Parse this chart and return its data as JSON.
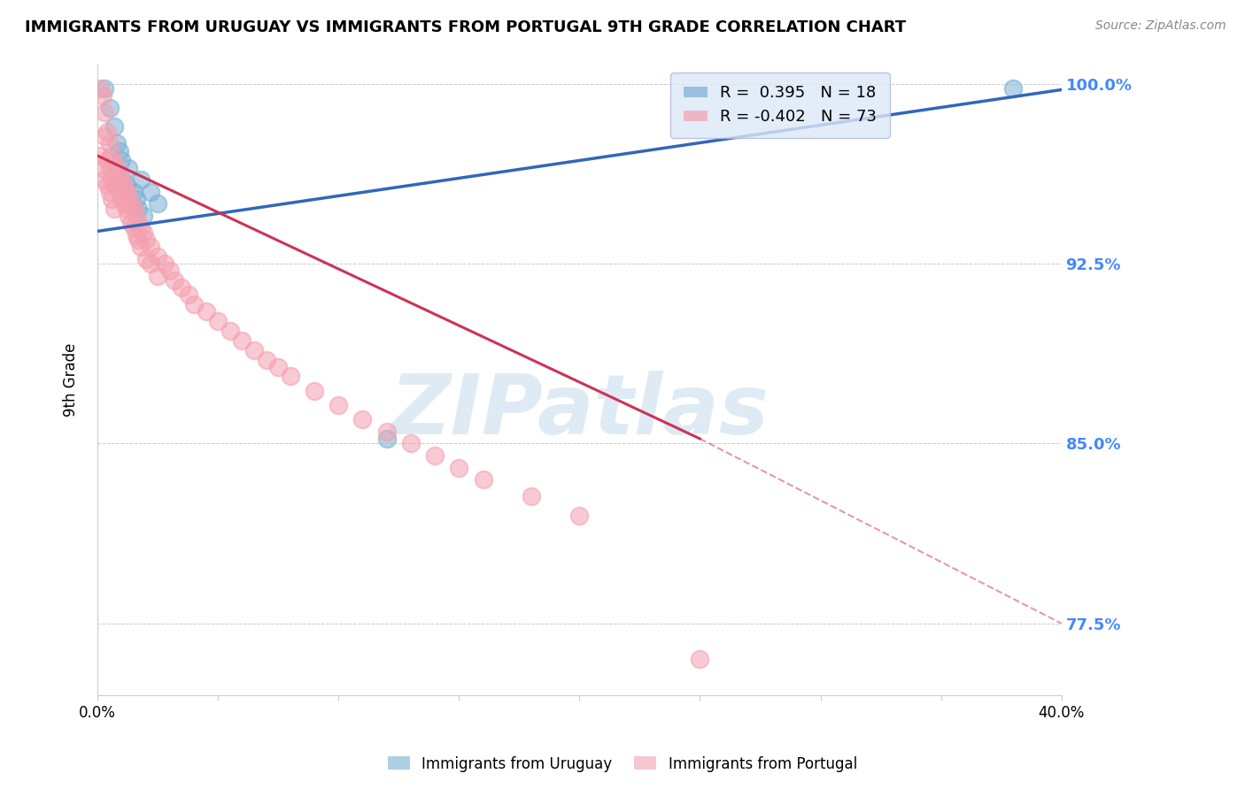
{
  "title": "IMMIGRANTS FROM URUGUAY VS IMMIGRANTS FROM PORTUGAL 9TH GRADE CORRELATION CHART",
  "source": "Source: ZipAtlas.com",
  "ylabel": "9th Grade",
  "xlim": [
    0.0,
    0.4
  ],
  "ylim": [
    0.745,
    1.008
  ],
  "yticks": [
    0.775,
    0.85,
    0.925,
    1.0
  ],
  "yticklabels": [
    "77.5%",
    "85.0%",
    "92.5%",
    "100.0%"
  ],
  "uruguay_color": "#7bafd4",
  "portugal_color": "#f4a0b0",
  "uruguay_R": 0.395,
  "uruguay_N": 18,
  "portugal_R": -0.402,
  "portugal_N": 73,
  "background_color": "#ffffff",
  "grid_color": "#cccccc",
  "watermark": "ZIPatlas",
  "watermark_color": "#b8d4e8",
  "right_axis_color": "#4488ff",
  "legend_box_color": "#dde8f8",
  "uruguay_line": [
    [
      0.0,
      0.9385
    ],
    [
      0.4,
      0.9975
    ]
  ],
  "portugal_line_solid": [
    [
      0.0,
      0.97
    ],
    [
      0.25,
      0.852
    ]
  ],
  "portugal_line_dash": [
    [
      0.25,
      0.852
    ],
    [
      0.4,
      0.775
    ]
  ],
  "uruguay_scatter": [
    [
      0.003,
      0.998
    ],
    [
      0.005,
      0.99
    ],
    [
      0.007,
      0.982
    ],
    [
      0.008,
      0.975
    ],
    [
      0.009,
      0.972
    ],
    [
      0.01,
      0.968
    ],
    [
      0.01,
      0.96
    ],
    [
      0.012,
      0.958
    ],
    [
      0.013,
      0.965
    ],
    [
      0.015,
      0.955
    ],
    [
      0.016,
      0.952
    ],
    [
      0.017,
      0.948
    ],
    [
      0.018,
      0.96
    ],
    [
      0.019,
      0.945
    ],
    [
      0.022,
      0.955
    ],
    [
      0.025,
      0.95
    ],
    [
      0.12,
      0.852
    ],
    [
      0.38,
      0.998
    ]
  ],
  "portugal_scatter": [
    [
      0.001,
      0.97
    ],
    [
      0.001,
      0.998
    ],
    [
      0.002,
      0.995
    ],
    [
      0.002,
      0.965
    ],
    [
      0.003,
      0.988
    ],
    [
      0.003,
      0.978
    ],
    [
      0.003,
      0.96
    ],
    [
      0.004,
      0.98
    ],
    [
      0.004,
      0.968
    ],
    [
      0.004,
      0.958
    ],
    [
      0.005,
      0.975
    ],
    [
      0.005,
      0.965
    ],
    [
      0.005,
      0.955
    ],
    [
      0.006,
      0.97
    ],
    [
      0.006,
      0.96
    ],
    [
      0.006,
      0.952
    ],
    [
      0.007,
      0.967
    ],
    [
      0.007,
      0.958
    ],
    [
      0.007,
      0.948
    ],
    [
      0.008,
      0.965
    ],
    [
      0.008,
      0.957
    ],
    [
      0.009,
      0.962
    ],
    [
      0.009,
      0.955
    ],
    [
      0.01,
      0.96
    ],
    [
      0.01,
      0.952
    ],
    [
      0.011,
      0.958
    ],
    [
      0.011,
      0.95
    ],
    [
      0.012,
      0.955
    ],
    [
      0.012,
      0.948
    ],
    [
      0.013,
      0.953
    ],
    [
      0.013,
      0.945
    ],
    [
      0.014,
      0.95
    ],
    [
      0.014,
      0.942
    ],
    [
      0.015,
      0.948
    ],
    [
      0.015,
      0.94
    ],
    [
      0.016,
      0.945
    ],
    [
      0.016,
      0.937
    ],
    [
      0.017,
      0.942
    ],
    [
      0.017,
      0.935
    ],
    [
      0.018,
      0.94
    ],
    [
      0.018,
      0.932
    ],
    [
      0.019,
      0.938
    ],
    [
      0.02,
      0.935
    ],
    [
      0.02,
      0.927
    ],
    [
      0.022,
      0.932
    ],
    [
      0.022,
      0.925
    ],
    [
      0.025,
      0.928
    ],
    [
      0.025,
      0.92
    ],
    [
      0.028,
      0.925
    ],
    [
      0.03,
      0.922
    ],
    [
      0.032,
      0.918
    ],
    [
      0.035,
      0.915
    ],
    [
      0.038,
      0.912
    ],
    [
      0.04,
      0.908
    ],
    [
      0.045,
      0.905
    ],
    [
      0.05,
      0.901
    ],
    [
      0.055,
      0.897
    ],
    [
      0.06,
      0.893
    ],
    [
      0.065,
      0.889
    ],
    [
      0.07,
      0.885
    ],
    [
      0.075,
      0.882
    ],
    [
      0.08,
      0.878
    ],
    [
      0.09,
      0.872
    ],
    [
      0.1,
      0.866
    ],
    [
      0.11,
      0.86
    ],
    [
      0.12,
      0.855
    ],
    [
      0.13,
      0.85
    ],
    [
      0.14,
      0.845
    ],
    [
      0.15,
      0.84
    ],
    [
      0.16,
      0.835
    ],
    [
      0.18,
      0.828
    ],
    [
      0.2,
      0.82
    ],
    [
      0.25,
      0.76
    ]
  ]
}
